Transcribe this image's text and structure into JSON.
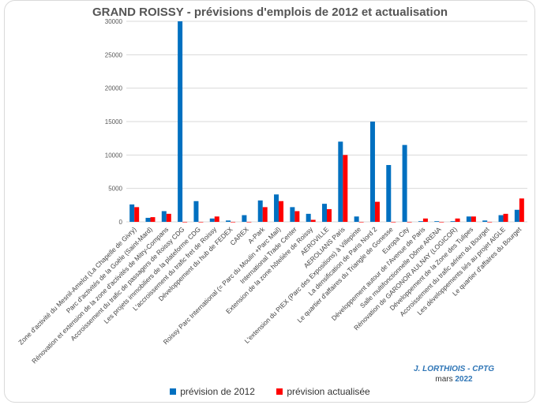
{
  "colors": {
    "series1": "#0070c0",
    "series2": "#ff0000",
    "grid": "#d9d9d9",
    "text": "#595959"
  },
  "credit": {
    "author": "J. LORTHIOIS - CPTG",
    "date_prefix": "mars",
    "date_year": "2022"
  },
  "chart_data": {
    "type": "bar",
    "title": "GRAND ROISSY - prévisions d'emplois de 2012 et actualisation",
    "xlabel": "",
    "ylabel": "",
    "ylim": [
      0,
      30000
    ],
    "yticks": [
      0,
      5000,
      10000,
      15000,
      20000,
      25000,
      30000
    ],
    "grid": true,
    "legend": "bottom",
    "categories": [
      "Zone d'activité du Mesnil-Amelot (La Chapelle de Givry)",
      "Parc d'activités de la Goële (Saint-Mard)",
      "Rénovation et extension de la zone d'activités de Mitry-Compans",
      "Accroissement du trafic de passagers de Roissy CDG",
      "Les projets immobiliers de la plateforme CDG",
      "L'accroissement du trafic fret de Roissy",
      "Développement du hub de FEDEX",
      "CAREX",
      "A-Park",
      "Roissy Parc International (= Parc du Moulin +Parc Mail)",
      "International Trade Center",
      "Extension de la zone hôtelière de Roissy",
      "AEROVILLE",
      "AEROLIANS Paris",
      "L'extension du PIEX (Parc des Expositions) à Villepinte",
      "La densification de Paris Nord 2",
      "Le quartier d'affaires du Triangle de Gonesse",
      "Europa City",
      "Développement autour de l'Avenue de Paris",
      "Salle multifonctionnelle Dôme ARENA",
      "Rénovation de GARONOR AULNAY (LOGICOR)",
      "Développement de la Zone des Tulipes",
      "Accroissement du trafic aérien du Bourget",
      "Les développements liés au projet AIGLE",
      "Le quartier d'affaires du Bourget"
    ],
    "series": [
      {
        "name": "prévision de 2012",
        "values": [
          2600,
          600,
          1600,
          30000,
          3100,
          500,
          200,
          1000,
          3200,
          4100,
          2200,
          1200,
          2700,
          12000,
          800,
          15000,
          8500,
          11500,
          100,
          100,
          100,
          800,
          200,
          1000,
          1800
        ]
      },
      {
        "name": "prévision actualisée",
        "values": [
          2200,
          700,
          1200,
          0,
          0,
          800,
          0,
          0,
          2200,
          3100,
          1600,
          300,
          1900,
          10000,
          0,
          3000,
          0,
          0,
          500,
          0,
          500,
          800,
          0,
          1200,
          3500
        ]
      }
    ]
  }
}
